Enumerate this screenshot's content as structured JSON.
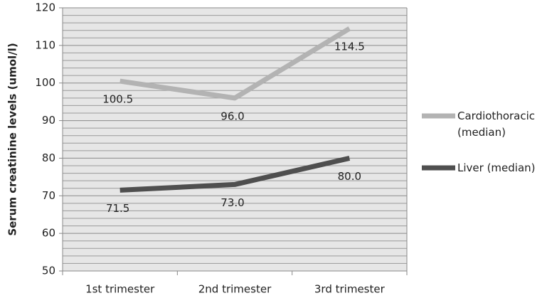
{
  "chart_data": {
    "type": "line",
    "y_label": "Serum creatinine levels  (umol/l)",
    "categories": [
      "1st trimester",
      "2nd trimester",
      "3rd trimester"
    ],
    "series": [
      {
        "name": "Cardiothoracic\n(median)",
        "color": "#b3b3b3",
        "values": [
          100.5,
          96,
          114.5
        ],
        "value_labels": [
          "100.5",
          "96.0",
          "114.5"
        ]
      },
      {
        "name": "Liver (median)",
        "color": "#4f4f4f",
        "values": [
          71.5,
          73,
          80
        ],
        "value_labels": [
          "71.5",
          "73.0",
          "80.0"
        ]
      }
    ],
    "ylim": [
      50,
      120
    ],
    "yticks": [
      50,
      60,
      70,
      80,
      90,
      100,
      110,
      120
    ],
    "grid": true,
    "legend": "right"
  }
}
